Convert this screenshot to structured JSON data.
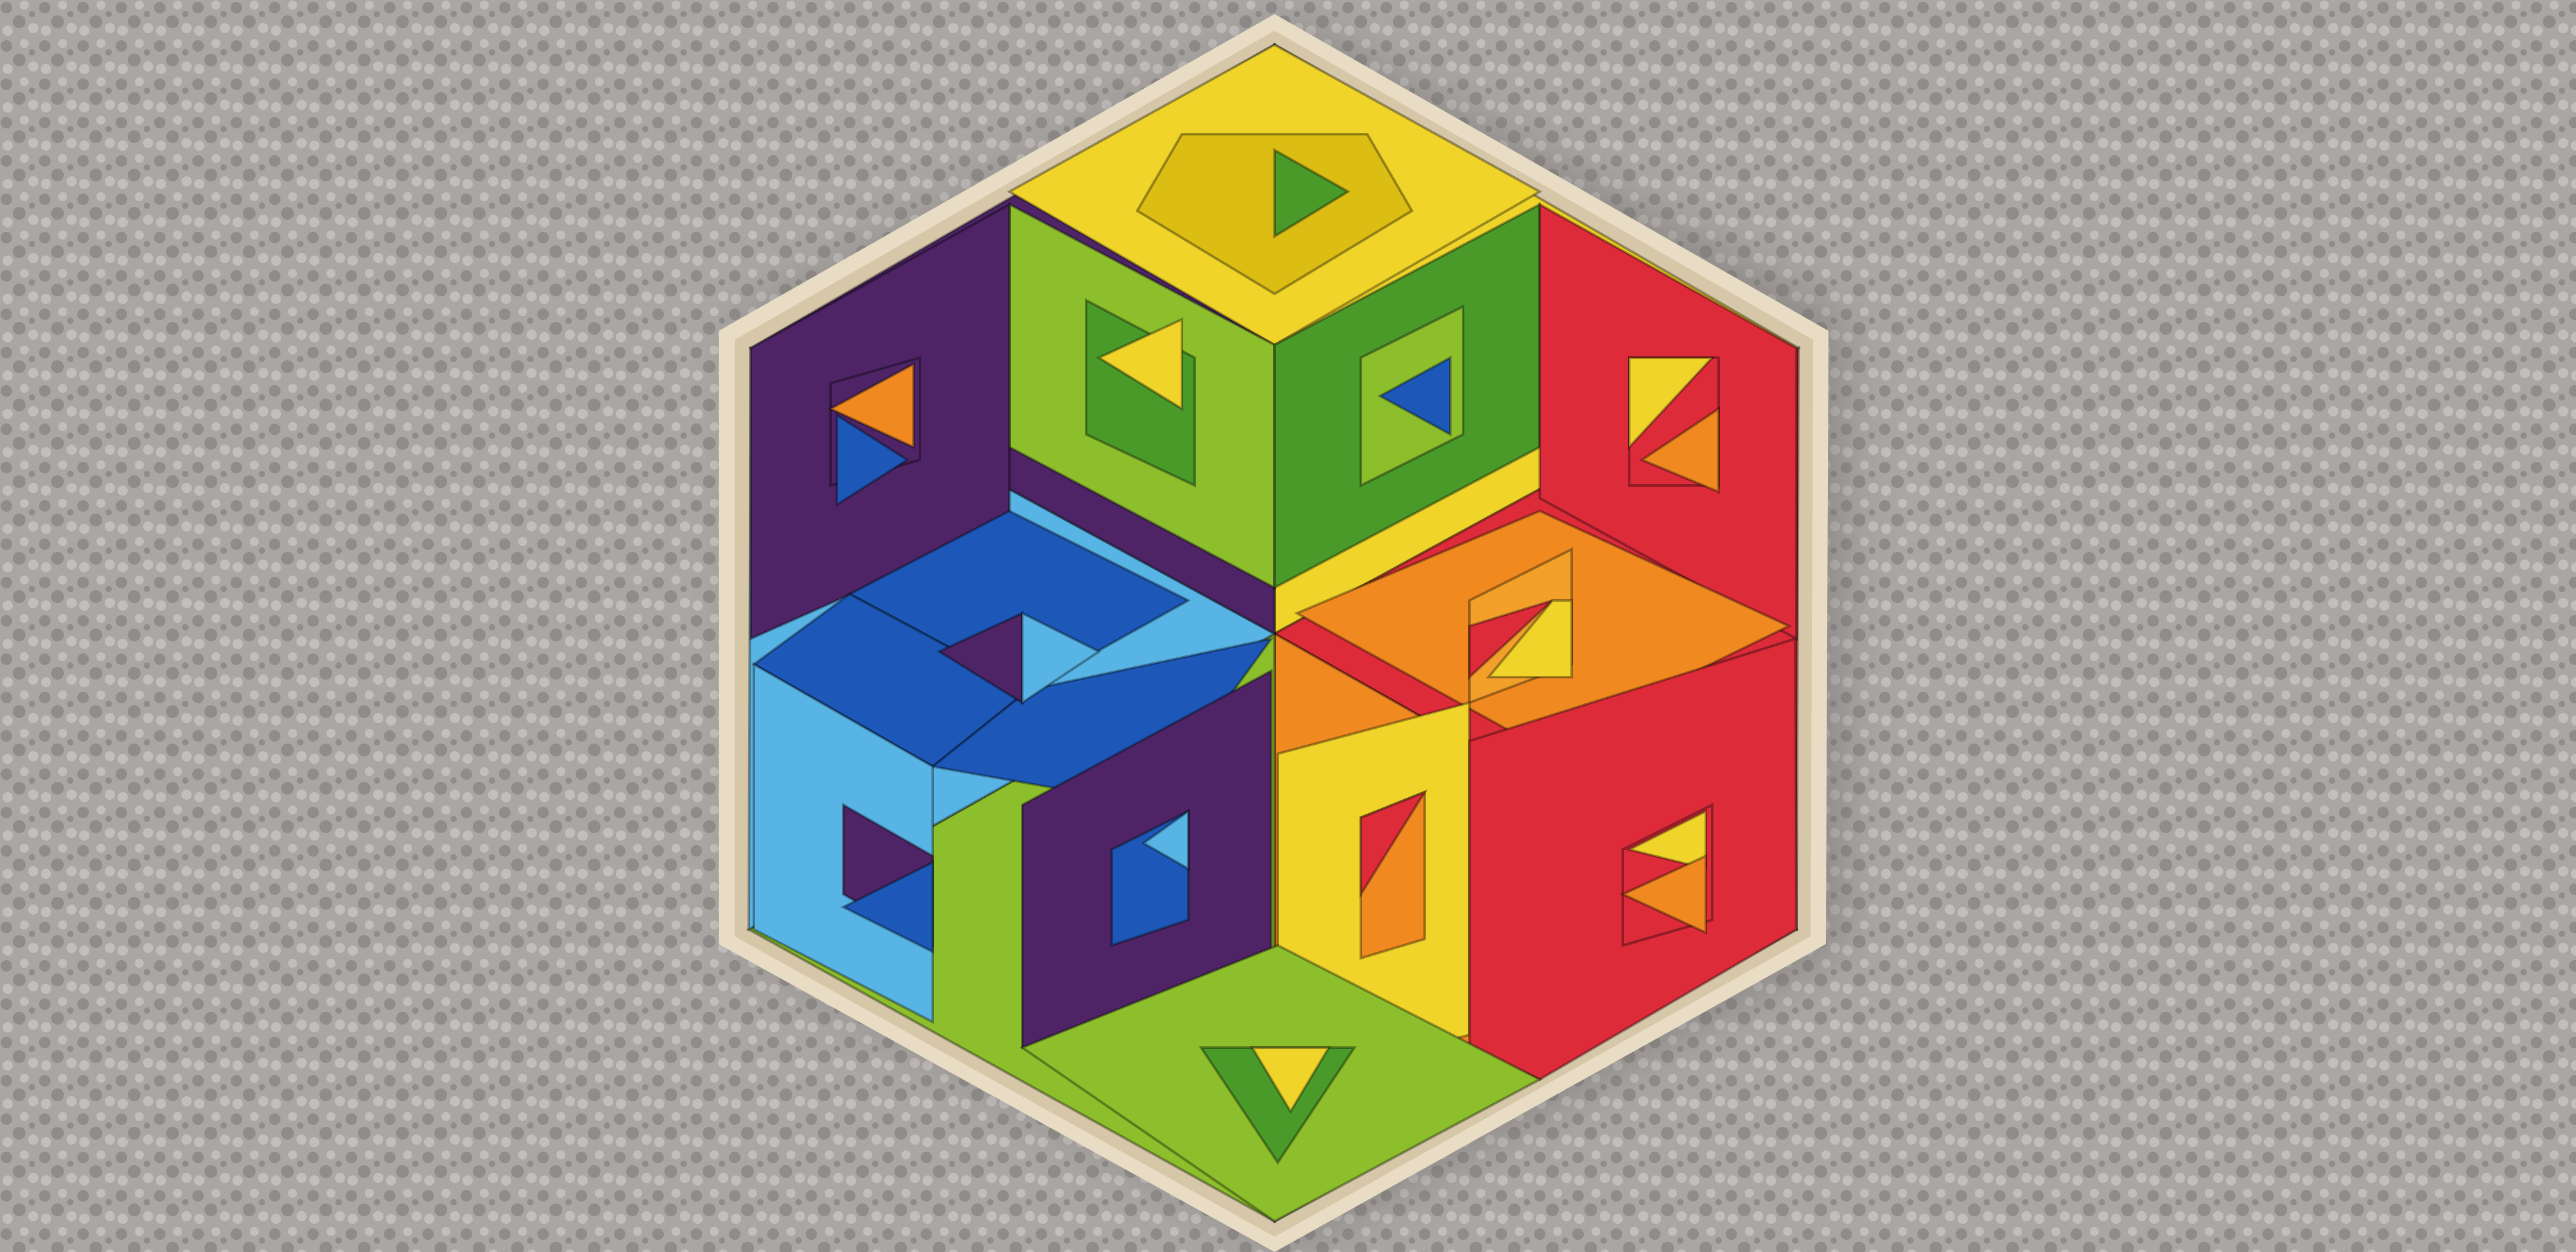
{
  "scene": {
    "subject": "rainbow-hexagon-tile-puzzle",
    "surface": "carpet",
    "colors": {
      "carpet": "#a9a6a4",
      "carpet_dark": "#8f8c8a",
      "carpet_light": "#c1bebc",
      "frame_wood": "#e8dcc4",
      "frame_inner": "#d6c7a8",
      "shadow": "#6f6b68",
      "yellow": "#f0d42a",
      "yellow_dark": "#dcbd14",
      "lime": "#8dbf2c",
      "green": "#4a9a2a",
      "red": "#dd2b3a",
      "orange": "#f08a20",
      "orange_light": "#f2a02a",
      "purple": "#4e2466",
      "blue": "#1d58b8",
      "sky": "#58b4e4"
    }
  }
}
